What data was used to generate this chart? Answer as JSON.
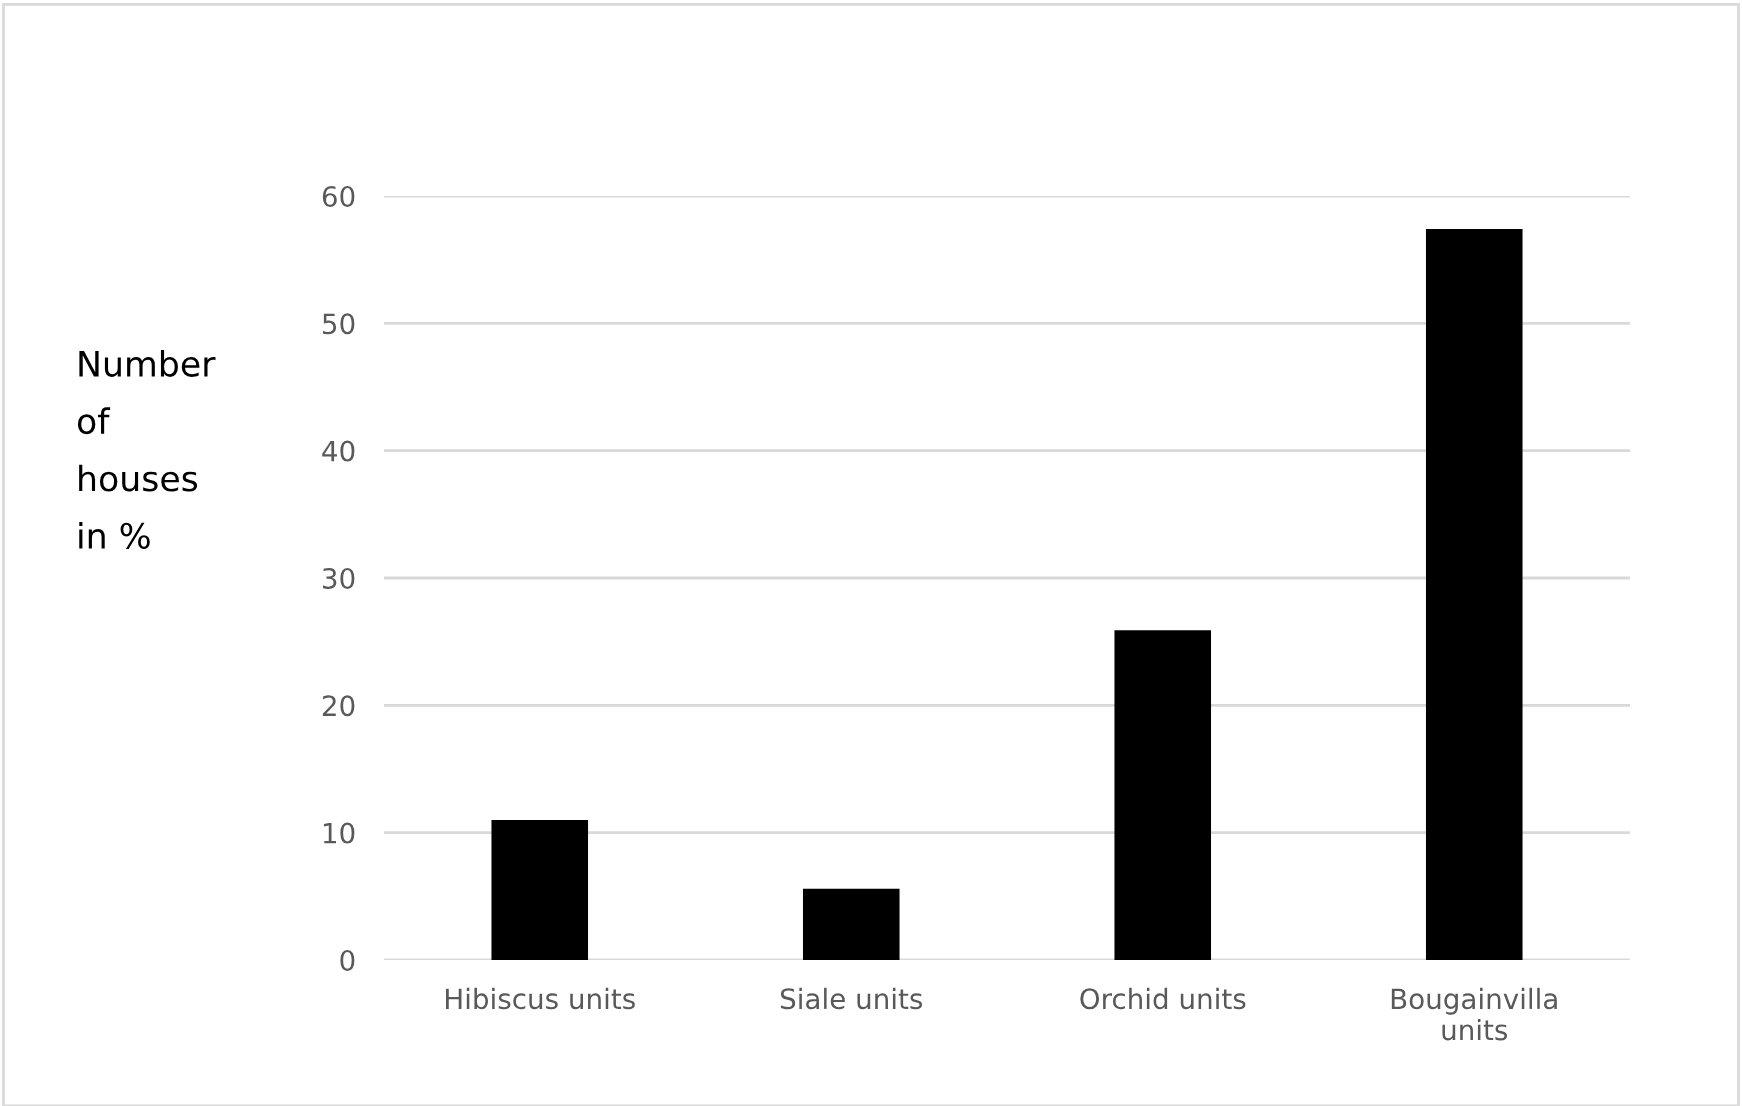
{
  "chart_data": {
    "type": "bar",
    "ylabel": "Number\nof\nhouses\nin %",
    "categories": [
      "Hibiscus units",
      "Siale units",
      "Orchid units",
      "Bougainvilla\nunits"
    ],
    "values": [
      11,
      5.6,
      25.9,
      57.4
    ],
    "color": "#000000",
    "ylim": [
      0,
      60
    ],
    "yticks": [
      0,
      10,
      20,
      30,
      40,
      50,
      60
    ],
    "grid": "y"
  }
}
